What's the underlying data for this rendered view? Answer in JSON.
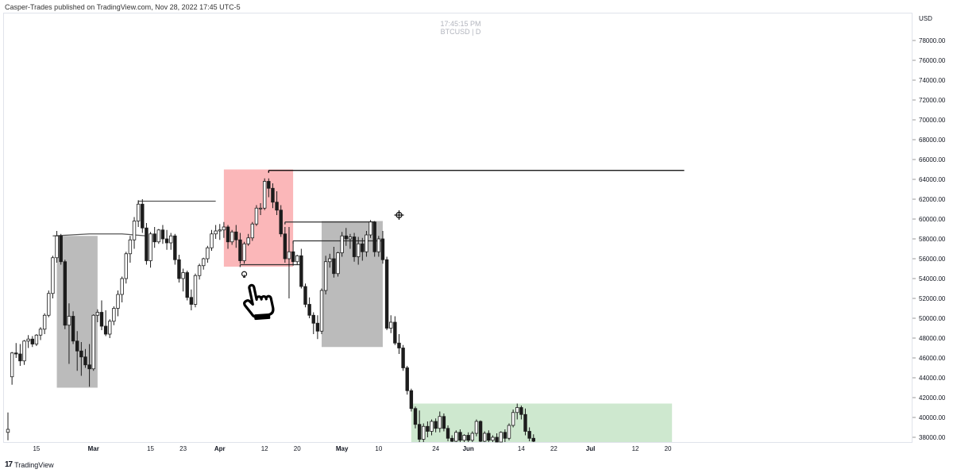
{
  "header": {
    "publisher_line": "Casper-Trades published on TradingView.com, Nov 28, 2022 17:45 UTC-5"
  },
  "watermark": {
    "time": "17:45:15 PM",
    "symbol_line": "BTCUSD | D"
  },
  "footer": {
    "brand": "TradingView",
    "logo_glyph": "17"
  },
  "axis": {
    "currency": "USD"
  },
  "icons": [
    "lightbulb-icon",
    "pointing-hand-icon",
    "crosshair-icon"
  ],
  "chart_data": {
    "type": "candlestick",
    "symbol": "BTCUSD",
    "interval": "D",
    "y_unit": "USD",
    "ylim": [
      37200,
      80000
    ],
    "y_ticks": [
      38000,
      40000,
      42000,
      44000,
      46000,
      48000,
      50000,
      52000,
      54000,
      56000,
      58000,
      60000,
      62000,
      64000,
      66000,
      68000,
      70000,
      72000,
      74000,
      76000,
      78000
    ],
    "y_tick_labels": [
      "38000.00",
      "40000.00",
      "42000.00",
      "44000.00",
      "46000.00",
      "48000.00",
      "50000.00",
      "52000.00",
      "54000.00",
      "56000.00",
      "58000.00",
      "60000.00",
      "62000.00",
      "64000.00",
      "66000.00",
      "68000.00",
      "70000.00",
      "72000.00",
      "74000.00",
      "76000.00",
      "78000.00"
    ],
    "x_range": [
      "2022-02-08",
      "2022-07-24"
    ],
    "x_ticks": [
      {
        "date": "2022-02-15",
        "label": "15"
      },
      {
        "date": "2022-03-01",
        "label": "Mar"
      },
      {
        "date": "2022-03-15",
        "label": "15"
      },
      {
        "date": "2022-03-23",
        "label": "23"
      },
      {
        "date": "2022-04-01",
        "label": "Apr"
      },
      {
        "date": "2022-04-12",
        "label": "12"
      },
      {
        "date": "2022-04-20",
        "label": "20"
      },
      {
        "date": "2022-05-01",
        "label": "May"
      },
      {
        "date": "2022-05-10",
        "label": "10"
      },
      {
        "date": "2022-05-24",
        "label": "24"
      },
      {
        "date": "2022-06-01",
        "label": "Jun"
      },
      {
        "date": "2022-06-14",
        "label": "14"
      },
      {
        "date": "2022-06-22",
        "label": "22"
      },
      {
        "date": "2022-07-01",
        "label": "Jul"
      },
      {
        "date": "2022-07-12",
        "label": "12"
      },
      {
        "date": "2022-07-20",
        "label": "20"
      }
    ],
    "ohlc_columns": [
      "date",
      "open",
      "high",
      "low",
      "close"
    ],
    "candles": [
      [
        "2022-02-08",
        38500,
        40500,
        37700,
        38800
      ],
      [
        "2022-02-09",
        44100,
        46600,
        43300,
        46500
      ],
      [
        "2022-02-10",
        46500,
        47500,
        46000,
        46400
      ],
      [
        "2022-02-11",
        46400,
        47400,
        45200,
        45700
      ],
      [
        "2022-02-12",
        45700,
        47800,
        45300,
        47700
      ],
      [
        "2022-02-13",
        47700,
        48300,
        47000,
        47900
      ],
      [
        "2022-02-14",
        47900,
        48200,
        47100,
        47400
      ],
      [
        "2022-02-15",
        47400,
        48400,
        47200,
        48300
      ],
      [
        "2022-02-16",
        48300,
        49100,
        47800,
        48900
      ],
      [
        "2022-02-17",
        48900,
        50500,
        48400,
        50300
      ],
      [
        "2022-02-18",
        50300,
        52800,
        50100,
        52500
      ],
      [
        "2022-02-19",
        52500,
        56300,
        52000,
        56100
      ],
      [
        "2022-02-20",
        56100,
        58800,
        55600,
        58300
      ],
      [
        "2022-02-21",
        58300,
        58500,
        55400,
        55700
      ],
      [
        "2022-02-22",
        55700,
        55900,
        48900,
        49300
      ],
      [
        "2022-02-23",
        49300,
        51500,
        45400,
        50200
      ],
      [
        "2022-02-24",
        50200,
        50700,
        47400,
        47700
      ],
      [
        "2022-02-25",
        47700,
        48700,
        44700,
        46700
      ],
      [
        "2022-02-26",
        46700,
        47600,
        44200,
        46100
      ],
      [
        "2022-02-27",
        46100,
        46900,
        45000,
        45300
      ],
      [
        "2022-02-28",
        45300,
        47400,
        43100,
        44900
      ],
      [
        "2022-03-01",
        44900,
        50400,
        44700,
        50300
      ],
      [
        "2022-03-02",
        50300,
        50900,
        49600,
        50600
      ],
      [
        "2022-03-03",
        50600,
        51800,
        48800,
        49200
      ],
      [
        "2022-03-04",
        49200,
        50800,
        48200,
        48400
      ],
      [
        "2022-03-05",
        48400,
        49900,
        48000,
        49700
      ],
      [
        "2022-03-06",
        49700,
        51200,
        49300,
        51000
      ],
      [
        "2022-03-07",
        51000,
        52800,
        50200,
        52400
      ],
      [
        "2022-03-08",
        52400,
        54200,
        51600,
        54000
      ],
      [
        "2022-03-09",
        54000,
        56700,
        53500,
        56500
      ],
      [
        "2022-03-10",
        56500,
        58300,
        55600,
        57900
      ],
      [
        "2022-03-11",
        57900,
        60200,
        57000,
        59800
      ],
      [
        "2022-03-12",
        59800,
        61900,
        59200,
        61500
      ],
      [
        "2022-03-13",
        61500,
        62000,
        58600,
        59100
      ],
      [
        "2022-03-14",
        59100,
        59600,
        55400,
        55800
      ],
      [
        "2022-03-15",
        55800,
        58700,
        55100,
        58500
      ],
      [
        "2022-03-16",
        58500,
        59200,
        57100,
        57700
      ],
      [
        "2022-03-17",
        57700,
        59000,
        57500,
        58900
      ],
      [
        "2022-03-18",
        58900,
        59400,
        57500,
        58000
      ],
      [
        "2022-03-19",
        58000,
        58900,
        56900,
        57600
      ],
      [
        "2022-03-20",
        57600,
        58600,
        56900,
        58300
      ],
      [
        "2022-03-21",
        58300,
        58500,
        55400,
        55900
      ],
      [
        "2022-03-22",
        55900,
        56400,
        53600,
        54000
      ],
      [
        "2022-03-23",
        54000,
        55000,
        52700,
        54600
      ],
      [
        "2022-03-24",
        54600,
        54800,
        51800,
        52100
      ],
      [
        "2022-03-25",
        52100,
        52900,
        50800,
        51400
      ],
      [
        "2022-03-26",
        51400,
        54500,
        51100,
        54300
      ],
      [
        "2022-03-27",
        54300,
        55500,
        53900,
        55300
      ],
      [
        "2022-03-28",
        55300,
        56100,
        54900,
        56000
      ],
      [
        "2022-03-29",
        56000,
        57300,
        55600,
        57100
      ],
      [
        "2022-03-30",
        57100,
        58900,
        56800,
        58500
      ],
      [
        "2022-03-31",
        58500,
        59400,
        58000,
        58800
      ],
      [
        "2022-04-01",
        58800,
        59500,
        57900,
        58900
      ],
      [
        "2022-04-02",
        58900,
        59700,
        58100,
        59200
      ],
      [
        "2022-04-03",
        59200,
        59400,
        57000,
        57700
      ],
      [
        "2022-04-04",
        57700,
        58900,
        57400,
        58700
      ],
      [
        "2022-04-05",
        58700,
        59400,
        57100,
        57900
      ],
      [
        "2022-04-06",
        57900,
        58600,
        55500,
        55800
      ],
      [
        "2022-04-07",
        55800,
        57700,
        55500,
        57500
      ],
      [
        "2022-04-08",
        57500,
        58500,
        57300,
        58100
      ],
      [
        "2022-04-09",
        58100,
        59700,
        57800,
        59500
      ],
      [
        "2022-04-10",
        59500,
        61400,
        59300,
        61100
      ],
      [
        "2022-04-11",
        61100,
        61600,
        60400,
        61100
      ],
      [
        "2022-04-12",
        61100,
        64100,
        60900,
        63800
      ],
      [
        "2022-04-13",
        63800,
        64100,
        62200,
        63100
      ],
      [
        "2022-04-14",
        63100,
        63600,
        61100,
        61700
      ],
      [
        "2022-04-15",
        61700,
        62800,
        60400,
        60900
      ],
      [
        "2022-04-16",
        60900,
        61400,
        58200,
        58500
      ],
      [
        "2022-04-17",
        58500,
        59200,
        55600,
        56000
      ],
      [
        "2022-04-18",
        56000,
        59200,
        52000,
        56700
      ],
      [
        "2022-04-19",
        56700,
        57600,
        55300,
        55700
      ],
      [
        "2022-04-20",
        55700,
        56400,
        55400,
        56300
      ],
      [
        "2022-04-21",
        56300,
        57000,
        53000,
        53200
      ],
      [
        "2022-04-22",
        53200,
        53500,
        51100,
        51400
      ],
      [
        "2022-04-23",
        51400,
        52100,
        50000,
        50300
      ],
      [
        "2022-04-24",
        50300,
        50600,
        48400,
        49500
      ],
      [
        "2022-04-25",
        49500,
        50300,
        47900,
        48700
      ],
      [
        "2022-04-26",
        48700,
        53000,
        48400,
        52800
      ],
      [
        "2022-04-27",
        52800,
        56300,
        52400,
        55700
      ],
      [
        "2022-04-28",
        55700,
        56500,
        55100,
        56000
      ],
      [
        "2022-04-29",
        56000,
        57200,
        54100,
        54500
      ],
      [
        "2022-04-30",
        54500,
        56700,
        54200,
        56600
      ],
      [
        "2022-05-01",
        56600,
        58700,
        56200,
        58300
      ],
      [
        "2022-05-02",
        58300,
        59100,
        57300,
        58000
      ],
      [
        "2022-05-03",
        58000,
        58500,
        57000,
        58200
      ],
      [
        "2022-05-04",
        58200,
        58600,
        55700,
        56200
      ],
      [
        "2022-05-05",
        56200,
        58200,
        55400,
        57500
      ],
      [
        "2022-05-06",
        57500,
        58100,
        55800,
        56700
      ],
      [
        "2022-05-07",
        56700,
        58800,
        56200,
        58400
      ],
      [
        "2022-05-08",
        58400,
        59900,
        58100,
        59700
      ],
      [
        "2022-05-09",
        59700,
        59800,
        56200,
        56700
      ],
      [
        "2022-05-10",
        56700,
        58300,
        56200,
        58000
      ],
      [
        "2022-05-11",
        58000,
        58800,
        55500,
        55900
      ],
      [
        "2022-05-12",
        55900,
        56200,
        48800,
        49000
      ],
      [
        "2022-05-13",
        49000,
        50300,
        48500,
        49600
      ],
      [
        "2022-05-14",
        49600,
        50200,
        47300,
        47500
      ],
      [
        "2022-05-15",
        47500,
        48400,
        46400,
        47000
      ],
      [
        "2022-05-16",
        47000,
        47300,
        44700,
        45000
      ],
      [
        "2022-05-17",
        45000,
        45200,
        42300,
        42700
      ],
      [
        "2022-05-18",
        42700,
        42900,
        40600,
        40900
      ],
      [
        "2022-05-19",
        40900,
        41100,
        38900,
        39300
      ],
      [
        "2022-05-20",
        39300,
        40700,
        37300,
        37800
      ],
      [
        "2022-05-21",
        37800,
        39400,
        37300,
        39100
      ],
      [
        "2022-05-22",
        39100,
        39600,
        38000,
        38600
      ],
      [
        "2022-05-23",
        38600,
        39800,
        38200,
        39600
      ],
      [
        "2022-05-24",
        39600,
        39900,
        38500,
        38900
      ],
      [
        "2022-05-25",
        38900,
        40600,
        38500,
        40100
      ],
      [
        "2022-05-26",
        40100,
        40400,
        38600,
        38900
      ],
      [
        "2022-05-27",
        38900,
        39200,
        37600,
        37900
      ],
      [
        "2022-05-28",
        37900,
        38200,
        37300,
        37600
      ],
      [
        "2022-05-29",
        37600,
        38700,
        37400,
        38500
      ],
      [
        "2022-05-30",
        38500,
        38800,
        37500,
        37700
      ],
      [
        "2022-05-31",
        37700,
        38300,
        37400,
        38200
      ],
      [
        "2022-06-01",
        38200,
        38500,
        37300,
        37700
      ],
      [
        "2022-06-02",
        37700,
        38600,
        37400,
        38400
      ],
      [
        "2022-06-03",
        38400,
        39800,
        38100,
        39600
      ],
      [
        "2022-06-04",
        39600,
        39700,
        37400,
        37600
      ],
      [
        "2022-06-05",
        37600,
        38600,
        37300,
        38400
      ],
      [
        "2022-06-06",
        38400,
        38700,
        37300,
        37700
      ],
      [
        "2022-06-07",
        37700,
        38200,
        37300,
        38000
      ],
      [
        "2022-06-08",
        38000,
        38400,
        37300,
        37500
      ],
      [
        "2022-06-09",
        37500,
        38600,
        37300,
        38500
      ],
      [
        "2022-06-10",
        38500,
        38800,
        37400,
        37900
      ],
      [
        "2022-06-11",
        37900,
        39400,
        37700,
        39200
      ],
      [
        "2022-06-12",
        39200,
        40800,
        39000,
        40500
      ],
      [
        "2022-06-13",
        40500,
        41400,
        39800,
        41000
      ],
      [
        "2022-06-14",
        41000,
        41200,
        39800,
        40300
      ],
      [
        "2022-06-15",
        40300,
        40900,
        38200,
        38600
      ],
      [
        "2022-06-16",
        38600,
        39000,
        37600,
        37900
      ],
      [
        "2022-06-17",
        37900,
        38300,
        37300,
        37600
      ]
    ],
    "horizontal_lines": [
      {
        "y": 64900,
        "x_start": "2022-04-13",
        "x_end": "2022-07-24",
        "color": "#000000"
      },
      {
        "y": 61800,
        "x_start": "2022-03-12",
        "x_end": "2022-03-31",
        "color": "#555555"
      },
      {
        "y": 59700,
        "x_start": "2022-04-17",
        "x_end": "2022-05-09",
        "color": "#333333"
      },
      {
        "y": 57800,
        "x_start": "2022-04-19",
        "x_end": "2022-05-11",
        "color": "#333333"
      },
      {
        "y": 55400,
        "x_start": "2022-04-06",
        "x_end": "2022-04-21",
        "color": "#333333"
      }
    ],
    "curved_line": [
      [
        "2022-02-19",
        58300
      ],
      [
        "2022-02-28",
        58500
      ],
      [
        "2022-03-08",
        58500
      ],
      [
        "2022-03-14",
        58300
      ]
    ],
    "zones": [
      {
        "x_start": "2022-02-20",
        "x_end": "2022-03-02",
        "y_low": 43000,
        "y_high": 58300,
        "color": "#9e9e9e",
        "opacity": 0.7
      },
      {
        "x_start": "2022-04-02",
        "x_end": "2022-04-19",
        "y_low": 55200,
        "y_high": 65000,
        "color": "#f77c80",
        "opacity": 0.55
      },
      {
        "x_start": "2022-04-26",
        "x_end": "2022-05-11",
        "y_low": 47100,
        "y_high": 59800,
        "color": "#9e9e9e",
        "opacity": 0.7
      },
      {
        "x_start": "2022-05-18",
        "x_end": "2022-07-21",
        "y_low": 37200,
        "y_high": 41400,
        "color": "#a5d6a7",
        "opacity": 0.55
      }
    ],
    "markers": [
      {
        "name": "lightbulb-icon",
        "x": "2022-04-07",
        "y": 54300
      },
      {
        "name": "pointing-hand-icon",
        "x": "2022-04-10",
        "y": 51600
      },
      {
        "name": "crosshair-icon",
        "x": "2022-05-15",
        "y": 60400
      }
    ]
  }
}
